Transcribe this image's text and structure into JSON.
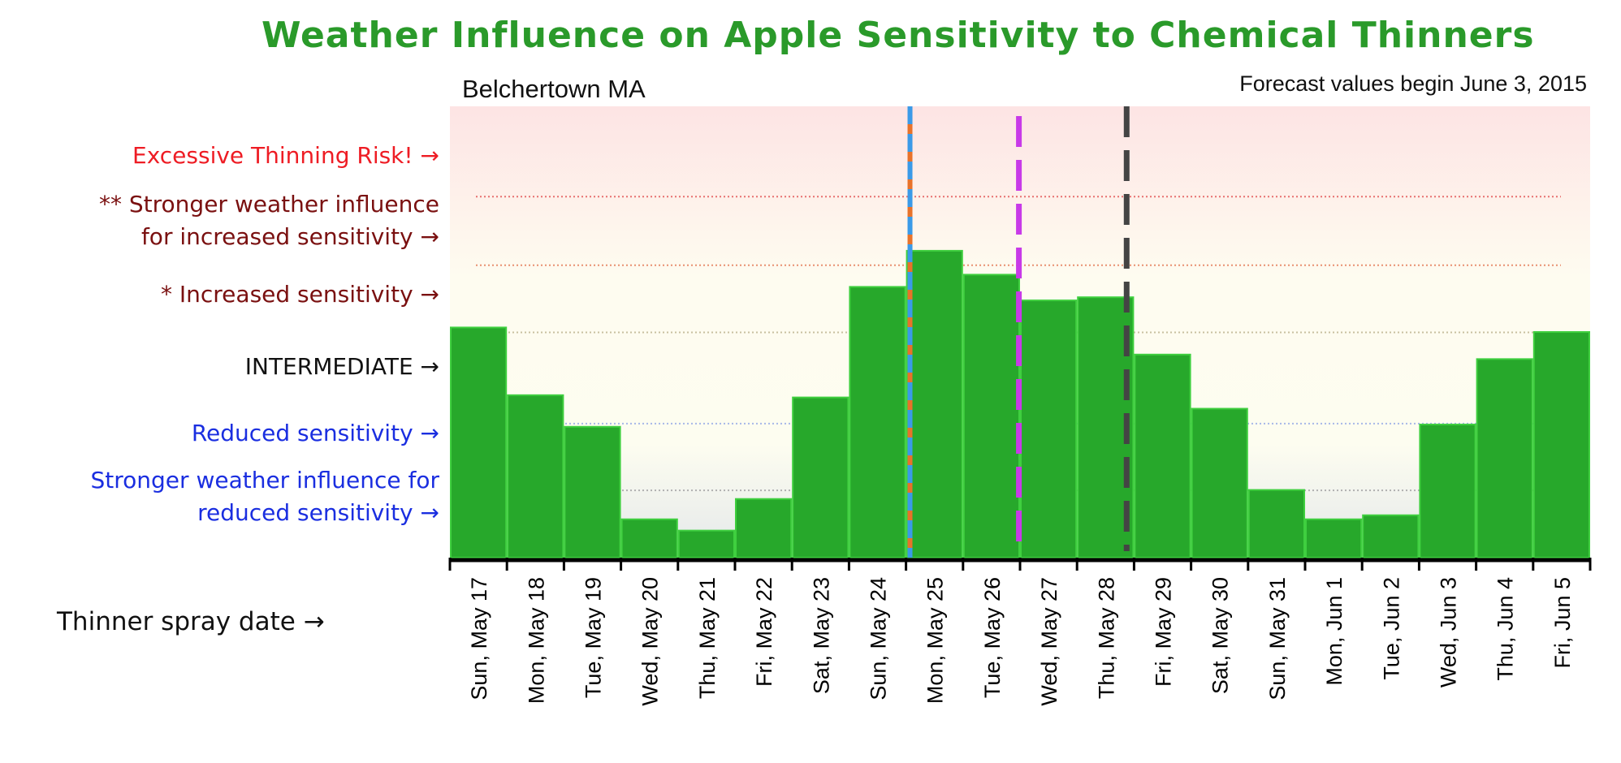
{
  "chart_data": {
    "type": "bar",
    "title": "Weather Influence on Apple Sensitivity to Chemical Thinners",
    "subtitle_left": "Belchertown MA",
    "subtitle_right": "Forecast values begin June 3, 2015",
    "xlabel": "Thinner spray date →",
    "ylabel": "",
    "ylim": [
      0,
      100
    ],
    "categories": [
      "Sun, May 17",
      "Mon, May 18",
      "Tue, May 19",
      "Wed, May 20",
      "Thu, May 21",
      "Fri, May 22",
      "Sat, May 23",
      "Sun, May 24",
      "Mon, May 25",
      "Tue, May 26",
      "Wed, May 27",
      "Thu, May 28",
      "Fri, May 29",
      "Sat, May 30",
      "Sun, May 31",
      "Mon, Jun 1",
      "Tue, Jun 2",
      "Wed, Jun 3",
      "Thu, Jun 4",
      "Fri, Jun 5"
    ],
    "values": [
      51,
      36,
      29,
      8.5,
      6,
      13,
      35.5,
      60,
      68,
      62.7,
      57,
      57.7,
      45,
      33,
      15,
      8.5,
      9.4,
      29.5,
      44,
      50
    ],
    "bar_color": "#27a82b",
    "thresholds": [
      {
        "value": 80,
        "color": "#e87070"
      },
      {
        "value": 64.8,
        "color": "#e89070"
      },
      {
        "value": 49.9,
        "color": "#c8c0a0"
      },
      {
        "value": 29.7,
        "color": "#a8b8e8"
      },
      {
        "value": 14.9,
        "color": "#b0b0b0"
      }
    ],
    "markers": [
      {
        "x_index": 8.07,
        "style": "orange-blue",
        "colors": [
          "#e8722a",
          "#3a9ae8"
        ]
      },
      {
        "x_index": 9.98,
        "style": "dashed",
        "colors": [
          "#c83ae8"
        ]
      },
      {
        "x_index": 11.87,
        "style": "dashed",
        "colors": [
          "#444444"
        ]
      }
    ],
    "level_labels": [
      {
        "lines": [
          "Excessive  Thinning  Risk! →"
        ],
        "color": "#ee1c24"
      },
      {
        "lines": [
          "** Stronger weather influence",
          "for  increased sensitivity →"
        ],
        "color": "#7a1010"
      },
      {
        "lines": [
          "* Increased sensitivity →"
        ],
        "color": "#7a1010"
      },
      {
        "lines": [
          "INTERMEDIATE →"
        ],
        "color": "#111111"
      },
      {
        "lines": [
          "Reduced sensitivity →"
        ],
        "color": "#1a2ee0"
      },
      {
        "lines": [
          "Stronger weather influence for",
          "reduced sensitivity →"
        ],
        "color": "#1a2ee0"
      }
    ]
  }
}
